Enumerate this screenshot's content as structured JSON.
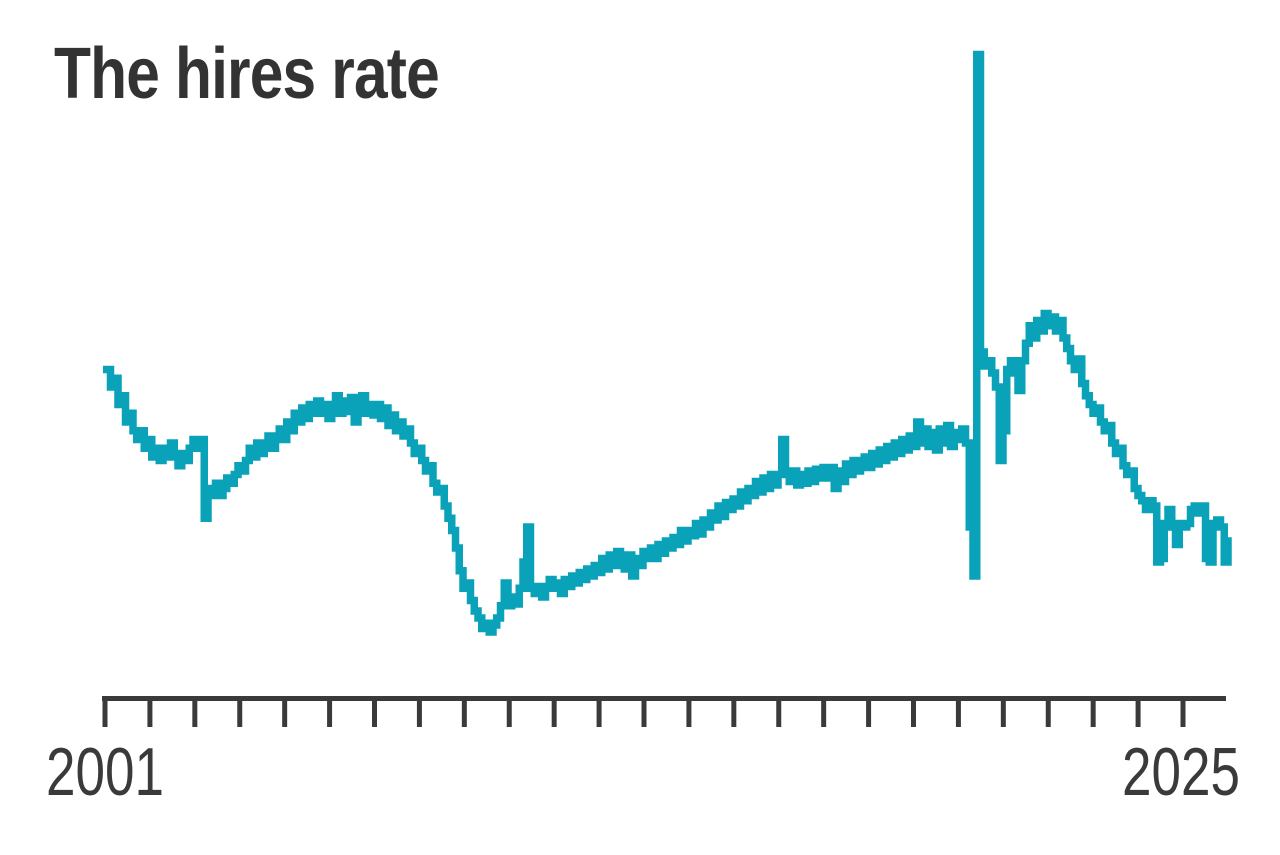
{
  "title": "The hires rate",
  "x_axis": {
    "start_label": "2001",
    "end_label": "2025",
    "tick_count": 25,
    "tick_interval": "1 year"
  },
  "colors": {
    "line": "#0aa2b8",
    "axis": "#3a3a3a",
    "title": "#333333",
    "tick_label": "#3a3a3a",
    "background": "#ffffff"
  },
  "chart_data": {
    "type": "line",
    "title": "The hires rate",
    "series_name": "Hires rate",
    "frequency": "monthly",
    "start_month": "2000-12",
    "end_month": "2025-12",
    "x_tick_labels": [
      "2001",
      "2025"
    ],
    "xlabel": "",
    "ylabel": "",
    "ylim": [
      2.6,
      6.2
    ],
    "grid": false,
    "legend": false,
    "style": "step-after, thick stroke, no y-axis shown",
    "values": [
      4.3,
      4.3,
      4.2,
      4.25,
      4.1,
      4.15,
      4.0,
      4.05,
      3.95,
      3.9,
      3.95,
      3.85,
      3.9,
      3.8,
      3.85,
      3.78,
      3.85,
      3.8,
      3.88,
      3.8,
      3.75,
      3.82,
      3.78,
      3.85,
      3.9,
      3.85,
      3.9,
      3.45,
      3.62,
      3.58,
      3.65,
      3.58,
      3.62,
      3.68,
      3.65,
      3.7,
      3.75,
      3.72,
      3.78,
      3.85,
      3.8,
      3.88,
      3.82,
      3.88,
      3.92,
      3.85,
      3.92,
      3.96,
      3.9,
      4.0,
      3.95,
      4.05,
      4.0,
      4.08,
      4.02,
      4.1,
      4.05,
      4.12,
      4.05,
      4.1,
      4.02,
      4.08,
      4.15,
      4.05,
      4.12,
      4.06,
      4.14,
      4.0,
      4.08,
      4.15,
      4.05,
      4.1,
      4.04,
      4.1,
      4.02,
      4.08,
      3.98,
      4.04,
      3.95,
      4.0,
      3.92,
      3.96,
      3.88,
      3.82,
      3.85,
      3.78,
      3.72,
      3.75,
      3.65,
      3.6,
      3.62,
      3.52,
      3.45,
      3.38,
      3.28,
      3.15,
      3.05,
      3.08,
      2.98,
      2.92,
      2.88,
      2.82,
      2.85,
      2.8,
      2.84,
      2.88,
      2.95,
      3.08,
      2.95,
      3.0,
      2.96,
      3.05,
      3.2,
      3.4,
      3.05,
      3.02,
      3.06,
      3.0,
      3.05,
      3.1,
      3.05,
      3.08,
      3.02,
      3.1,
      3.06,
      3.12,
      3.08,
      3.14,
      3.1,
      3.16,
      3.12,
      3.18,
      3.14,
      3.22,
      3.16,
      3.24,
      3.18,
      3.26,
      3.22,
      3.16,
      3.24,
      3.12,
      3.22,
      3.18,
      3.26,
      3.22,
      3.28,
      3.22,
      3.3,
      3.25,
      3.32,
      3.28,
      3.34,
      3.3,
      3.38,
      3.32,
      3.38,
      3.35,
      3.42,
      3.36,
      3.44,
      3.4,
      3.48,
      3.44,
      3.52,
      3.46,
      3.54,
      3.5,
      3.56,
      3.52,
      3.6,
      3.55,
      3.62,
      3.58,
      3.66,
      3.6,
      3.68,
      3.62,
      3.7,
      3.64,
      3.7,
      3.9,
      3.72,
      3.66,
      3.72,
      3.64,
      3.7,
      3.65,
      3.72,
      3.66,
      3.73,
      3.68,
      3.74,
      3.68,
      3.74,
      3.62,
      3.72,
      3.66,
      3.76,
      3.7,
      3.78,
      3.72,
      3.76,
      3.8,
      3.74,
      3.82,
      3.76,
      3.84,
      3.78,
      3.86,
      3.8,
      3.88,
      3.82,
      3.9,
      3.84,
      3.92,
      3.86,
      4.0,
      3.88,
      3.96,
      3.86,
      3.94,
      3.84,
      3.96,
      3.88,
      3.98,
      3.86,
      3.94,
      3.9,
      3.96,
      3.88,
      3.4,
      3.12,
      6.1,
      4.4,
      4.32,
      4.35,
      4.28,
      4.2,
      3.78,
      3.95,
      4.3,
      4.35,
      4.28,
      4.18,
      4.35,
      4.45,
      4.55,
      4.48,
      4.58,
      4.52,
      4.62,
      4.55,
      4.6,
      4.52,
      4.58,
      4.48,
      4.42,
      4.35,
      4.3,
      4.36,
      4.22,
      4.15,
      4.1,
      4.05,
      4.08,
      4.0,
      3.95,
      3.98,
      3.88,
      3.82,
      3.85,
      3.75,
      3.7,
      3.72,
      3.62,
      3.58,
      3.55,
      3.5,
      3.55,
      3.52,
      3.2,
      3.22,
      3.42,
      3.5,
      3.4,
      3.3,
      3.42,
      3.4,
      3.42,
      3.5,
      3.52,
      3.48,
      3.52,
      3.22,
      3.2,
      3.42,
      3.44,
      3.4,
      3.2,
      3.32
    ]
  }
}
